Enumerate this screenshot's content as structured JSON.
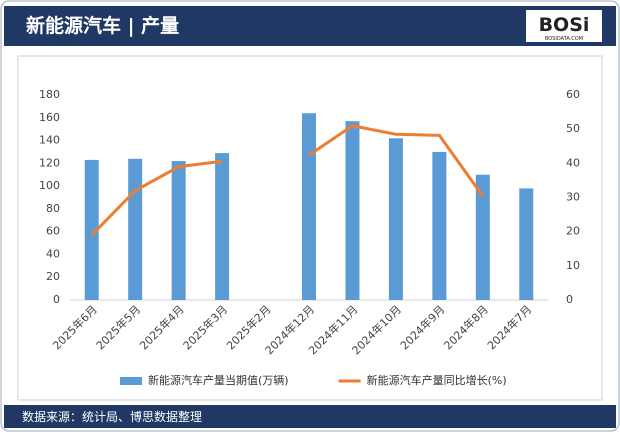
{
  "header": {
    "title": "新能源汽车 | 产量",
    "logo": "BOSi",
    "logo_sub": "BOSIDATA.COM"
  },
  "chart_data": {
    "type": "bar_line",
    "categories": [
      "2025年6月",
      "2025年5月",
      "2025年4月",
      "2025年3月",
      "2025年2月",
      "2024年12月",
      "2024年11月",
      "2024年10月",
      "2024年9月",
      "2024年8月",
      "2024年7月"
    ],
    "series": [
      {
        "name": "新能源汽车产量当期值(万辆)",
        "type": "bar",
        "color": "#5b9bd5",
        "values": [
          123,
          124,
          122,
          129,
          null,
          164,
          157,
          142,
          130,
          110,
          98
        ]
      },
      {
        "name": "新能源汽车产量同比增长(%)",
        "type": "line",
        "axis": "y2",
        "color": "#ed7d31",
        "values": [
          19,
          32,
          39,
          40.6,
          null,
          42.4,
          51,
          48.5,
          48.2,
          30.4,
          null
        ]
      }
    ],
    "ylim": [
      0,
      180
    ],
    "yticks": [
      0,
      20,
      40,
      60,
      80,
      100,
      120,
      140,
      160,
      180
    ],
    "y2lim": [
      0,
      60
    ],
    "y2ticks": [
      0,
      10,
      20,
      30,
      40,
      50,
      60
    ],
    "grid": false,
    "legend": "bottom"
  },
  "footer": {
    "source": "数据来源：统计局、博思数据整理"
  }
}
